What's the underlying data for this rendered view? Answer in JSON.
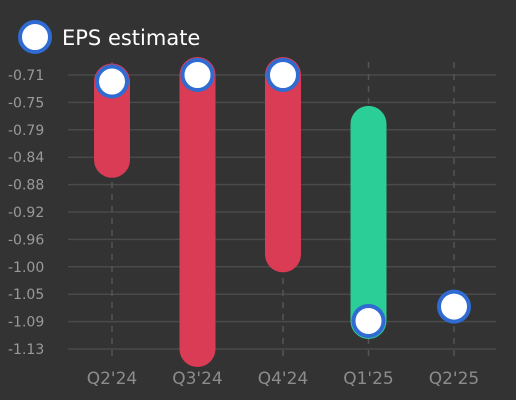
{
  "chart_data": {
    "type": "bar",
    "subtype": "range-with-estimate-markers",
    "categories": [
      "Q2'24",
      "Q3'24",
      "Q4'24",
      "Q1'25",
      "Q2'25"
    ],
    "series": [
      {
        "name": "EPS estimate",
        "values": [
          -0.72,
          -0.71,
          -0.71,
          -1.087,
          -1.065
        ]
      }
    ],
    "ranges": [
      {
        "low": -0.84,
        "high": -0.72,
        "direction": "down"
      },
      {
        "low": -1.13,
        "high": -0.71,
        "direction": "down"
      },
      {
        "low": -0.985,
        "high": -0.71,
        "direction": "down"
      },
      {
        "low": -1.087,
        "high": -0.785,
        "direction": "up"
      },
      null
    ],
    "y_ticks": [
      "-0.71",
      "-0.75",
      "-0.79",
      "-0.84",
      "-0.88",
      "-0.92",
      "-0.96",
      "-1.00",
      "-1.05",
      "-1.09",
      "-1.13"
    ],
    "y_tick_values": [
      -0.71,
      -0.75,
      -0.79,
      -0.84,
      -0.88,
      -0.92,
      -0.96,
      -1.0,
      -1.05,
      -1.09,
      -1.13
    ],
    "ylim": [
      -1.15,
      -0.7
    ],
    "legend_position": "top-left",
    "grid": true,
    "colors": {
      "background": "#333333",
      "down": "#d93c54",
      "up": "#2bce97",
      "marker_fill": "#ffffff",
      "marker_stroke": "#2f6bd1",
      "grid": "#4a4a4a"
    }
  }
}
